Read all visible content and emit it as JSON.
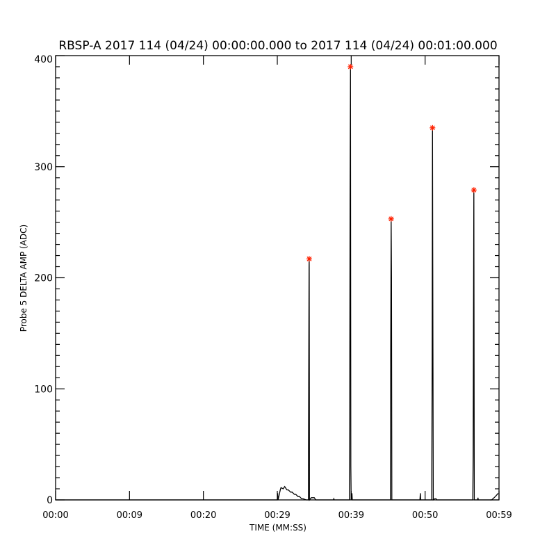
{
  "chart_data": {
    "type": "line",
    "title": "RBSP-A 2017 114 (04/24) 00:00:00.000 to 2017 114 (04/24) 00:01:00.000",
    "xlabel": "TIME (MM:SS)",
    "ylabel": "Probe 5 DELTA AMP (ADC)",
    "xlim": [
      0,
      60
    ],
    "ylim": [
      0,
      400
    ],
    "x_tick_labels": [
      "00:00",
      "00:09",
      "00:20",
      "00:29",
      "00:39",
      "00:50",
      "00:59"
    ],
    "y_ticks": [
      0,
      100,
      200,
      300,
      400
    ],
    "grid": false,
    "line_color": "#000000",
    "marker_color": "#ff2000",
    "series": [
      {
        "x": [
          0,
          30.0,
          30.05,
          30.1,
          30.4,
          30.5,
          30.8,
          31.0,
          31.3,
          31.5,
          31.8,
          32.0,
          32.3,
          32.5,
          32.8,
          33.0,
          33.3,
          33.5,
          33.9,
          34.2,
          34.25,
          34.3,
          34.32,
          34.35,
          34.6,
          35.0,
          35.2,
          37.6,
          37.65,
          37.7,
          39.75,
          39.8,
          39.85,
          39.9,
          39.95,
          40.0,
          40.1,
          40.15,
          45.3,
          45.35,
          45.4,
          45.45,
          45.5,
          49.3,
          49.35,
          49.4,
          50.9,
          50.95,
          51.0,
          51.05,
          51.1,
          51.3,
          51.5,
          51.55,
          56.45,
          56.5,
          56.55,
          56.6,
          56.65,
          57.1,
          57.15,
          57.2,
          59.0,
          59.5,
          59.9
        ],
        "y": [
          0,
          0,
          6,
          0,
          9,
          11,
          10,
          12,
          9,
          9,
          7,
          7,
          5,
          5,
          3,
          3,
          1,
          1,
          0,
          0,
          110,
          210,
          217,
          0,
          2,
          2,
          0,
          0,
          1,
          0,
          0,
          75,
          270,
          390,
          30,
          0,
          6,
          0,
          0,
          137,
          253,
          200,
          0,
          0,
          6,
          0,
          0,
          127,
          335,
          173,
          0,
          1,
          1,
          0,
          0,
          40,
          170,
          279,
          0,
          0,
          2,
          0,
          0,
          3,
          6
        ]
      }
    ],
    "peaks": {
      "x": [
        34.32,
        39.9,
        45.4,
        51.0,
        56.6
      ],
      "y": [
        217,
        390,
        253,
        335,
        279
      ]
    }
  }
}
